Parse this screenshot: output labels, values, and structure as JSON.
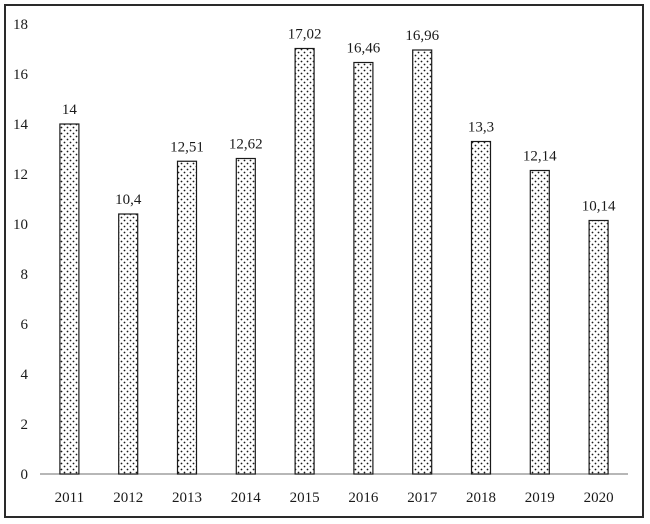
{
  "chart_data": {
    "type": "bar",
    "categories": [
      "2011",
      "2012",
      "2013",
      "2014",
      "2015",
      "2016",
      "2017",
      "2018",
      "2019",
      "2020"
    ],
    "values": [
      14,
      10.4,
      12.51,
      12.62,
      17.02,
      16.46,
      16.96,
      13.3,
      12.14,
      10.14
    ],
    "data_labels": [
      "14",
      "10,4",
      "12,51",
      "12,62",
      "17,02",
      "16,46",
      "16,96",
      "13,3",
      "12,14",
      "10,14"
    ],
    "y_ticks": [
      "0",
      "2",
      "4",
      "6",
      "8",
      "10",
      "12",
      "14",
      "16",
      "18"
    ],
    "ylim": [
      0,
      18
    ],
    "title": "",
    "xlabel": "",
    "ylabel": "",
    "grid": false,
    "legend": "none",
    "bar_fill": "dotted",
    "colors": {
      "bar_outline": "#1a1a1a",
      "dots": "#1a1a1a",
      "axis": "#8c8c8c",
      "frame": "#2a2a2a"
    }
  }
}
